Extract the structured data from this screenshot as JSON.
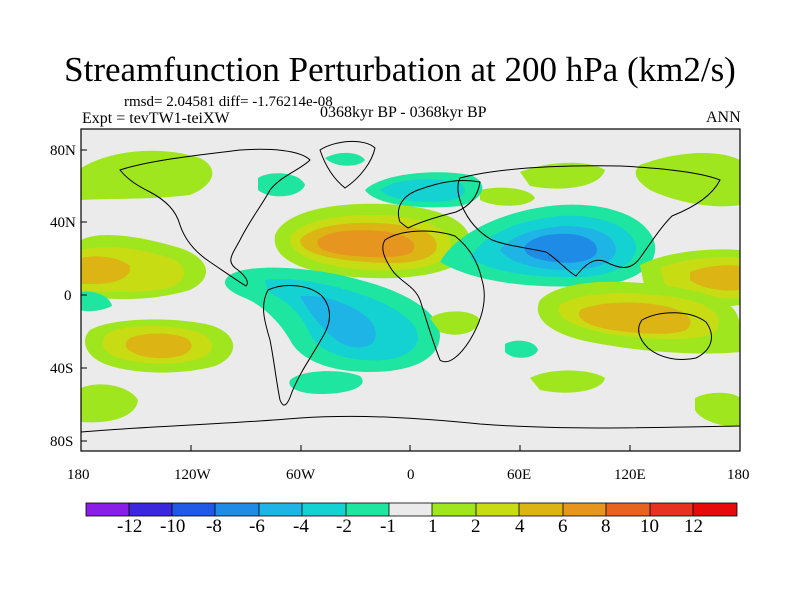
{
  "title": "Streamfunction Perturbation at 200 hPa (km2/s)",
  "stats": "rmsd= 2.04581 diff= -1.76214e-08",
  "experiment": "Expt = tevTW1-teiXW",
  "period": "0368kyr BP - 0368kyr BP",
  "season": "ANN",
  "colors": {
    "neg12": "#8a1ee6",
    "neg10": "#3c28dc",
    "neg8": "#1e5ae6",
    "neg6": "#1e8ce6",
    "neg4": "#1eb4e6",
    "neg2": "#14d2d2",
    "neg1": "#1ee6a0",
    "zero": "#ebebeb",
    "pos1": "#a0e61e",
    "pos2": "#c8dc14",
    "pos4": "#dcb414",
    "pos6": "#e6961e",
    "pos8": "#e6641e",
    "pos10": "#e6321e",
    "pos12": "#e60a0a"
  },
  "chart_data": {
    "type": "heatmap",
    "title": "Streamfunction Perturbation at 200 hPa (km2/s)",
    "units": "km2/s",
    "xlim": [
      -180,
      180
    ],
    "ylim": [
      -90,
      90
    ],
    "x_ticks": [
      "180",
      "120W",
      "60W",
      "0",
      "60E",
      "120E",
      "180"
    ],
    "y_ticks": [
      "80N",
      "40N",
      "0",
      "40S",
      "80S"
    ],
    "colorbar_labels": [
      "-12",
      "-10",
      "-8",
      "-6",
      "-4",
      "-2",
      "-1",
      "1",
      "2",
      "4",
      "6",
      "8",
      "10",
      "12"
    ],
    "features": [
      {
        "name": "North Atlantic high",
        "lon": -35,
        "lat": 30,
        "value": 8
      },
      {
        "name": "South Asia low",
        "lon": 80,
        "lat": 28,
        "value": -8
      },
      {
        "name": "Tropical South Atlantic low",
        "lon": -35,
        "lat": -15,
        "value": -4
      },
      {
        "name": "Tropical North Pacific high",
        "lon": -160,
        "lat": 15,
        "value": 4
      },
      {
        "name": "Indian Ocean high",
        "lon": 90,
        "lat": -12,
        "value": 4
      }
    ]
  }
}
